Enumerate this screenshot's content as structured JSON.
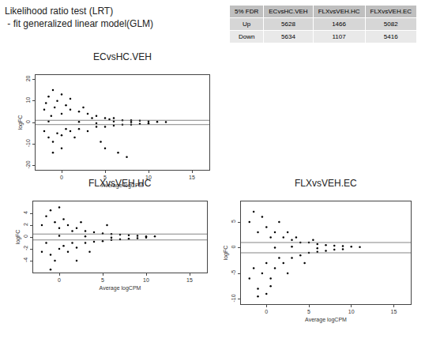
{
  "heading": [
    "Likelihood ratio test (LRT)",
    " - fit generalized linear model(GLM)"
  ],
  "table": {
    "header": [
      "5% FDR",
      "ECvsHC.VEH",
      "FLXvsVEH.HC",
      "FLXvsVEH.EC"
    ],
    "rows": [
      [
        "Up",
        5628,
        1466,
        5082
      ],
      [
        "Down",
        5634,
        1107,
        5416
      ]
    ]
  },
  "chart_data": [
    {
      "type": "scatter",
      "title": "ECvsHC.VEH",
      "x_label": "Average logCPM",
      "y_label": "logFC",
      "color": "#000000",
      "marker": "circle",
      "grid": false,
      "xlim": [
        -3,
        17
      ],
      "xticks": [
        0,
        5,
        10,
        15
      ],
      "ylim": [
        -22,
        22
      ],
      "yticks": [
        -20,
        -10,
        0,
        10,
        20
      ],
      "reference_lines": [
        -1,
        1
      ],
      "x": [
        -2,
        -2,
        -1.8,
        -1.5,
        -1.5,
        -1.2,
        -1,
        -1,
        -0.8,
        -0.5,
        -0.5,
        0,
        0,
        0,
        0.5,
        0.5,
        1,
        1,
        1,
        1.5,
        2,
        2,
        2.5,
        3,
        3,
        3.5,
        4,
        4,
        4.5,
        5,
        5,
        5,
        5.5,
        6,
        6,
        6.5,
        7,
        7,
        7.5,
        8,
        8,
        9,
        9,
        10,
        10,
        11,
        12,
        -1.5,
        2,
        4,
        6,
        8,
        -1,
        0
      ],
      "values": [
        6,
        -4,
        9,
        12,
        -7,
        3,
        15,
        -9,
        7,
        -5,
        10,
        4,
        -6,
        13,
        8,
        -3,
        6,
        -4,
        11,
        -7,
        5,
        -3,
        7,
        4,
        -4,
        2,
        3,
        -2,
        -9,
        2,
        -2,
        -12,
        1.5,
        2,
        -1.5,
        -14,
        1,
        -1,
        -16,
        1,
        -1,
        0.8,
        -0.6,
        0.5,
        -0.5,
        0.3,
        0.2,
        0.5,
        0.3,
        -0.4,
        0.5,
        0.2,
        -14,
        -12
      ]
    },
    {
      "type": "scatter",
      "title": "FLXvsVEH.HC",
      "x_label": "Average logCPM",
      "y_label": "logFC",
      "color": "#000000",
      "marker": "circle",
      "grid": false,
      "xlim": [
        -3,
        17
      ],
      "xticks": [
        0,
        5,
        10,
        15
      ],
      "ylim": [
        -6,
        6
      ],
      "yticks": [
        -4,
        -2,
        0,
        2,
        4
      ],
      "reference_lines": [
        -0.5,
        0.5
      ],
      "x": [
        -2,
        -2,
        -1.5,
        -1.5,
        -1,
        -1,
        -0.5,
        -0.5,
        0,
        0,
        0,
        0.5,
        0.5,
        1,
        1,
        1.5,
        1.5,
        2,
        2,
        2.5,
        3,
        3,
        3.5,
        4,
        4,
        5,
        5,
        5.5,
        6,
        6,
        7,
        7,
        8,
        8,
        9,
        9,
        10,
        10,
        11,
        -1,
        2,
        0,
        3,
        6
      ],
      "values": [
        2,
        -2.5,
        3.5,
        -1,
        4.5,
        -3,
        2.5,
        -4,
        1.5,
        -2,
        5,
        3,
        -1.5,
        2,
        -2.5,
        1,
        -1,
        1.5,
        -1.8,
        2.5,
        1,
        -1,
        -2.5,
        0.8,
        -0.8,
        0.6,
        -0.7,
        2,
        0.5,
        -0.5,
        0.4,
        -0.4,
        0.3,
        -0.3,
        0.2,
        -0.2,
        0.1,
        -0.1,
        0.1,
        -5.5,
        -4,
        0.2,
        0.1,
        -0.1
      ]
    },
    {
      "type": "scatter",
      "title": "FLXvsVEH.EC",
      "x_label": "Average logCPM",
      "y_label": "logFC",
      "color": "#000000",
      "marker": "circle",
      "grid": false,
      "xlim": [
        -3,
        17
      ],
      "xticks": [
        0,
        5,
        10,
        15
      ],
      "ylim": [
        -11,
        9
      ],
      "yticks": [
        -10,
        -5,
        0,
        5
      ],
      "reference_lines": [
        -1,
        1
      ],
      "x": [
        -2,
        -2,
        -1.5,
        -1.5,
        -1,
        -1,
        -0.5,
        -0.5,
        0,
        0,
        0,
        0.5,
        0.5,
        1,
        1,
        1.5,
        1.5,
        2,
        2,
        2.5,
        2.5,
        3,
        3,
        3.5,
        4,
        4,
        4.5,
        5,
        5,
        5.5,
        6,
        6,
        7,
        7,
        8,
        8,
        9,
        9,
        10,
        11,
        -1,
        0.5,
        1,
        3,
        6
      ],
      "values": [
        5,
        -6,
        7,
        -4,
        3,
        -8,
        6,
        -5,
        4,
        -3,
        -9,
        2,
        -6,
        3,
        -4,
        5,
        -2,
        2,
        -3,
        3,
        -5,
        1.5,
        -2,
        2,
        1,
        -1.5,
        -3,
        1,
        -1,
        1.5,
        0.7,
        -0.8,
        0.5,
        -0.6,
        0.4,
        -0.4,
        0.3,
        -0.3,
        0.2,
        0.1,
        -9.5,
        -7.5,
        0,
        0.2,
        -0.1
      ]
    }
  ]
}
